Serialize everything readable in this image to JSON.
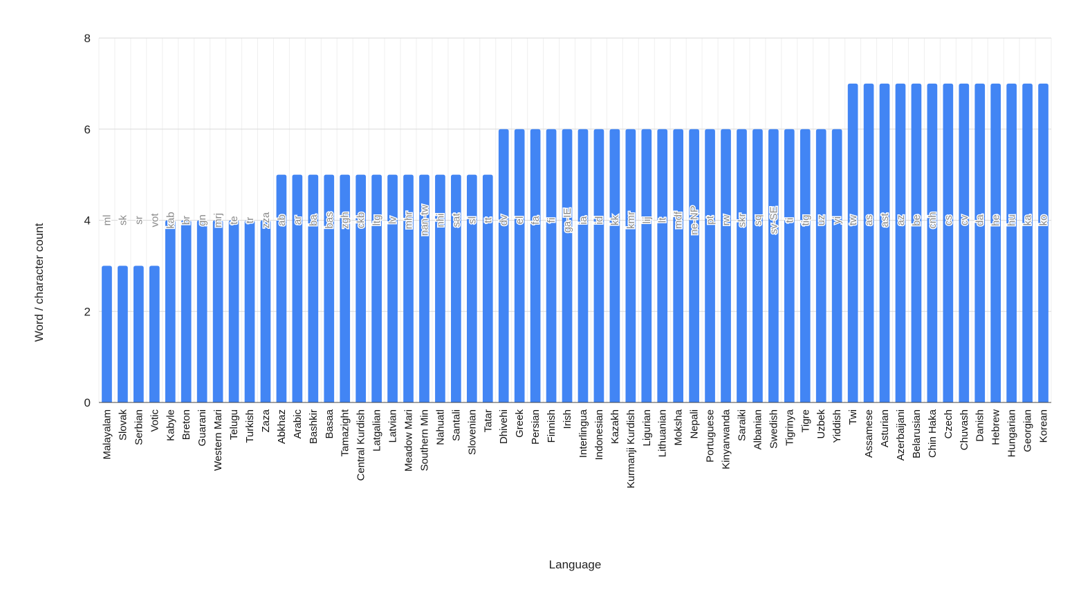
{
  "chart_data": {
    "type": "bar",
    "xlabel": "Language",
    "ylabel": "Word / character count",
    "ylim": [
      0,
      8
    ],
    "yticks": [
      0,
      2,
      4,
      6,
      8
    ],
    "grid": true,
    "bar_color": "#4285f4",
    "data_label_color": "#8a8a8a",
    "categories": [
      "Malayalam",
      "Slovak",
      "Serbian",
      "Votic",
      "Kabyle",
      "Breton",
      "Guarani",
      "Western Mari",
      "Telugu",
      "Turkish",
      "Zaza",
      "Abkhaz",
      "Arabic",
      "Bashkir",
      "Basaa",
      "Tamazight",
      "Central Kurdish",
      "Latgalian",
      "Latvian",
      "Meadow Mari",
      "Southern Min",
      "Nahuatl",
      "Santali",
      "Slovenian",
      "Tatar",
      "Dhivehi",
      "Greek",
      "Persian",
      "Finnish",
      "Irish",
      "Interlingua",
      "Indonesian",
      "Kazakh",
      "Kurmanji Kurdish",
      "Ligurian",
      "Lithuanian",
      "Moksha",
      "Nepali",
      "Portuguese",
      "Kinyarwanda",
      "Saraiki",
      "Albanian",
      "Swedish",
      "Tigrinya",
      "Tigre",
      "Uzbek",
      "Yiddish",
      "Twi",
      "Assamese",
      "Asturian",
      "Azerbaijani",
      "Belarusian",
      "Chin Haka",
      "Czech",
      "Chuvash",
      "Danish",
      "Hebrew",
      "Hungarian",
      "Georgian",
      "Korean"
    ],
    "codes": [
      "ml",
      "sk",
      "sr",
      "vot",
      "kab",
      "br",
      "gn",
      "mrj",
      "te",
      "tr",
      "zza",
      "ab",
      "ar",
      "ba",
      "bas",
      "zgh",
      "ckb",
      "ltg",
      "lv",
      "mhr",
      "nan-tw",
      "nhi",
      "sat",
      "sl",
      "tt",
      "dv",
      "el",
      "fa",
      "fi",
      "ga-IE",
      "ia",
      "id",
      "kk",
      "kmr",
      "lij",
      "lt",
      "mdf",
      "ne-NP",
      "pt",
      "rw",
      "skr",
      "sq",
      "sv-SE",
      "ti",
      "tig",
      "uz",
      "yi",
      "tw",
      "as",
      "ast",
      "az",
      "be",
      "cnh",
      "cs",
      "cv",
      "da",
      "he",
      "hu",
      "ka",
      "ko"
    ],
    "values": [
      3,
      3,
      3,
      3,
      4,
      4,
      4,
      4,
      4,
      4,
      4,
      5,
      5,
      5,
      5,
      5,
      5,
      5,
      5,
      5,
      5,
      5,
      5,
      5,
      5,
      6,
      6,
      6,
      6,
      6,
      6,
      6,
      6,
      6,
      6,
      6,
      6,
      6,
      6,
      6,
      6,
      6,
      6,
      6,
      6,
      6,
      6,
      7,
      7,
      7,
      7,
      7,
      7,
      7,
      7,
      7,
      7,
      7,
      7,
      7
    ]
  }
}
